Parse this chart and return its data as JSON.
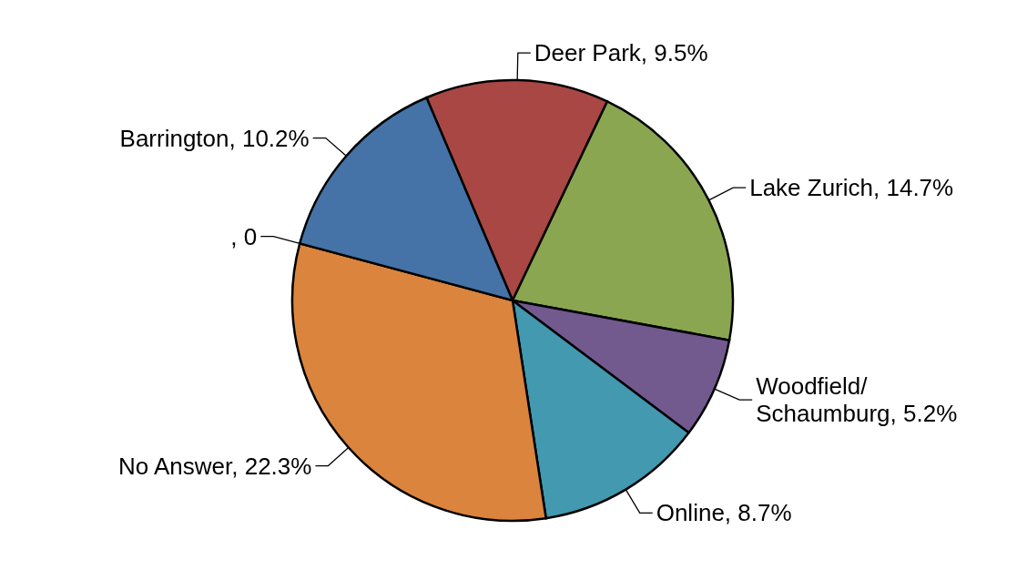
{
  "chart_data": {
    "type": "pie",
    "categories": [
      "Deer Park",
      "Lake Zurich",
      "Woodfield/Schaumburg",
      "Online",
      "No Answer",
      null,
      "Barrington"
    ],
    "values": [
      9.5,
      14.7,
      5.2,
      8.7,
      22.3,
      0,
      10.2
    ],
    "value_labels": [
      "9.5%",
      "14.7%",
      "5.2%",
      "8.7%",
      "22.3%",
      ", 0",
      "10.2%"
    ],
    "colors": [
      "#a94744",
      "#8ba651",
      "#725a8f",
      "#4299b0",
      "#db843d",
      "#4573a7",
      "#4573a7"
    ]
  }
}
